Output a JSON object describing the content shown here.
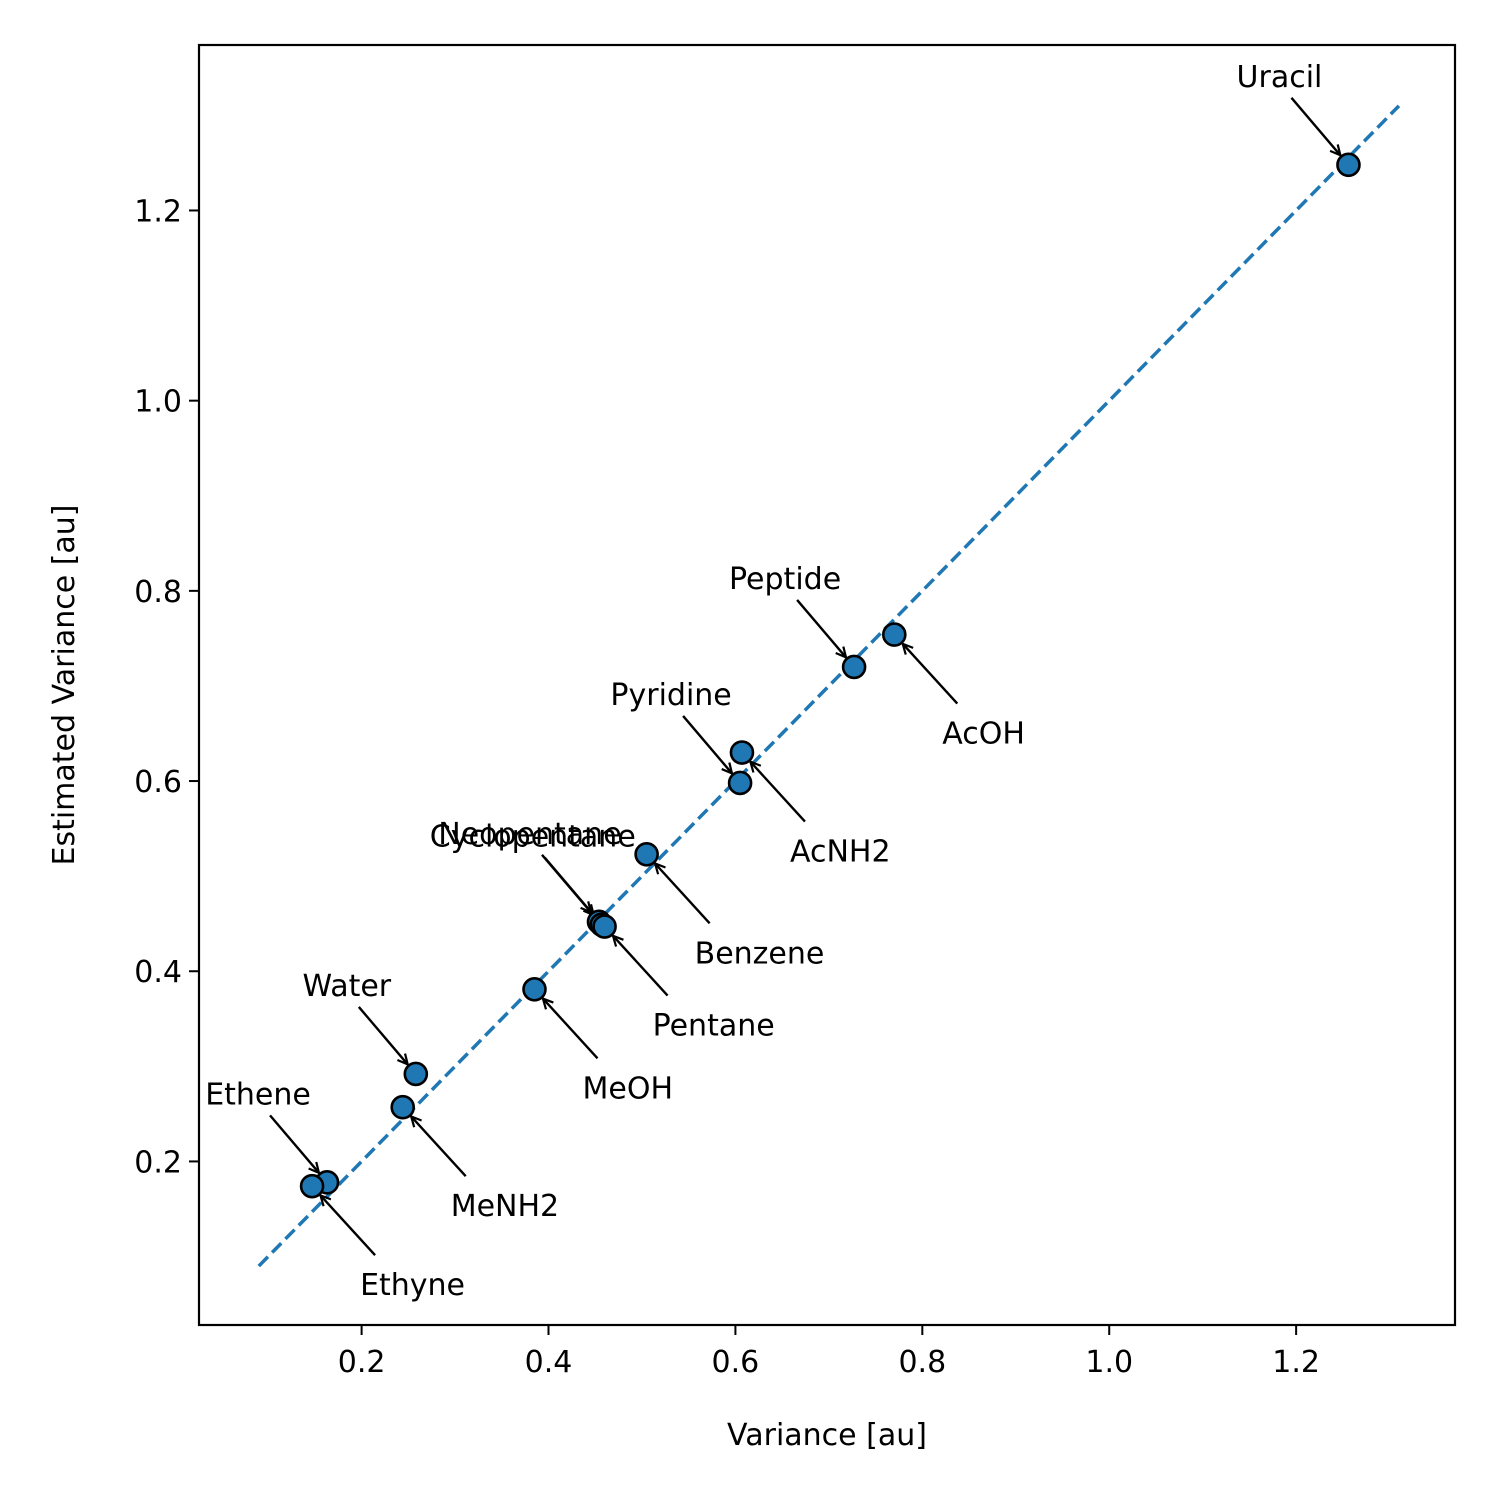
{
  "chart_data": {
    "type": "scatter",
    "xlabel": "Variance [au]",
    "ylabel": "Estimated Variance [au]",
    "xlim": [
      0.026,
      1.37
    ],
    "ylim": [
      0.028,
      1.374
    ],
    "x_ticks": [
      0.2,
      0.4,
      0.6,
      0.8,
      1.0,
      1.2
    ],
    "x_tick_labels": [
      "0.2",
      "0.4",
      "0.6",
      "0.8",
      "1.0",
      "1.2"
    ],
    "y_ticks": [
      0.2,
      0.4,
      0.6,
      0.8,
      1.0,
      1.2
    ],
    "y_tick_labels": [
      "0.2",
      "0.4",
      "0.6",
      "0.8",
      "1.0",
      "1.2"
    ],
    "grid": false,
    "marker_color": "#1f77b4",
    "reference_line": {
      "style": "dashed",
      "color": "#1f77b4",
      "x": [
        0.09,
        1.31
      ],
      "y": [
        0.09,
        1.31
      ]
    },
    "points": [
      {
        "label": "Uracil",
        "x": 1.256,
        "y": 1.248,
        "label_side": "above-left"
      },
      {
        "label": "Peptide",
        "x": 0.727,
        "y": 0.72,
        "label_side": "above-left"
      },
      {
        "label": "AcOH",
        "x": 0.77,
        "y": 0.754,
        "label_side": "below-right"
      },
      {
        "label": "Pyridine",
        "x": 0.605,
        "y": 0.598,
        "label_side": "above-left"
      },
      {
        "label": "AcNH2",
        "x": 0.607,
        "y": 0.63,
        "label_side": "below-right"
      },
      {
        "label": "Neopentane",
        "x": 0.454,
        "y": 0.452,
        "label_side": "above-left"
      },
      {
        "label": "Cyclopentane",
        "x": 0.457,
        "y": 0.449,
        "label_side": "above-left"
      },
      {
        "label": "Benzene",
        "x": 0.505,
        "y": 0.523,
        "label_side": "below-right"
      },
      {
        "label": "Pentane",
        "x": 0.46,
        "y": 0.447,
        "label_side": "below-right"
      },
      {
        "label": "MeOH",
        "x": 0.385,
        "y": 0.381,
        "label_side": "below-right"
      },
      {
        "label": "Water",
        "x": 0.258,
        "y": 0.292,
        "label_side": "above-left"
      },
      {
        "label": "MeNH2",
        "x": 0.244,
        "y": 0.257,
        "label_side": "below-right"
      },
      {
        "label": "Ethene",
        "x": 0.163,
        "y": 0.178,
        "label_side": "above-left"
      },
      {
        "label": "Ethyne",
        "x": 0.147,
        "y": 0.174,
        "label_side": "below-right"
      }
    ]
  }
}
